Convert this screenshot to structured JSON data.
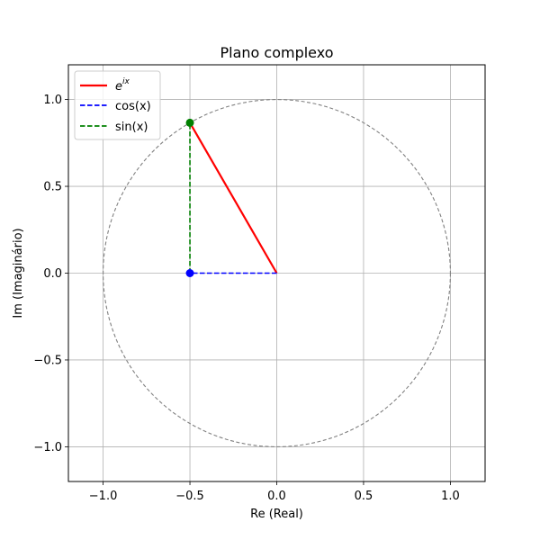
{
  "chart_data": {
    "type": "line",
    "title": "Plano complexo",
    "xlabel": "Re (Real)",
    "ylabel": "Im (Imaginário)",
    "xlim": [
      -1.2,
      1.2
    ],
    "ylim": [
      -1.2,
      1.2
    ],
    "grid": true,
    "legend_position": "upper-left",
    "x_ticks": [
      -1.0,
      -0.5,
      0.0,
      0.5,
      1.0
    ],
    "y_ticks": [
      -1.0,
      -0.5,
      0.0,
      0.5,
      1.0
    ],
    "x_tick_labels": [
      "−1.0",
      "−0.5",
      "0.0",
      "0.5",
      "1.0"
    ],
    "y_tick_labels": [
      "−1.0",
      "−0.5",
      "0.0",
      "0.5",
      "1.0"
    ],
    "unit_circle": {
      "radius": 1.0,
      "color": "#808080",
      "style": "dashed"
    },
    "series": [
      {
        "name_base": "e",
        "name_sup": "ix",
        "color": "#ff0000",
        "style": "solid",
        "points": [
          [
            0,
            0
          ],
          [
            -0.5,
            0.866
          ]
        ]
      },
      {
        "name": "cos(x)",
        "color": "#0000ff",
        "style": "dashed",
        "points": [
          [
            0,
            0
          ],
          [
            -0.5,
            0
          ]
        ]
      },
      {
        "name": "sin(x)",
        "color": "#008000",
        "style": "dashed",
        "points": [
          [
            -0.5,
            0
          ],
          [
            -0.5,
            0.866
          ]
        ]
      }
    ],
    "markers": [
      {
        "x": -0.5,
        "y": 0.0,
        "color": "#0000ff"
      },
      {
        "x": -0.5,
        "y": 0.866,
        "color": "#008000"
      }
    ]
  }
}
